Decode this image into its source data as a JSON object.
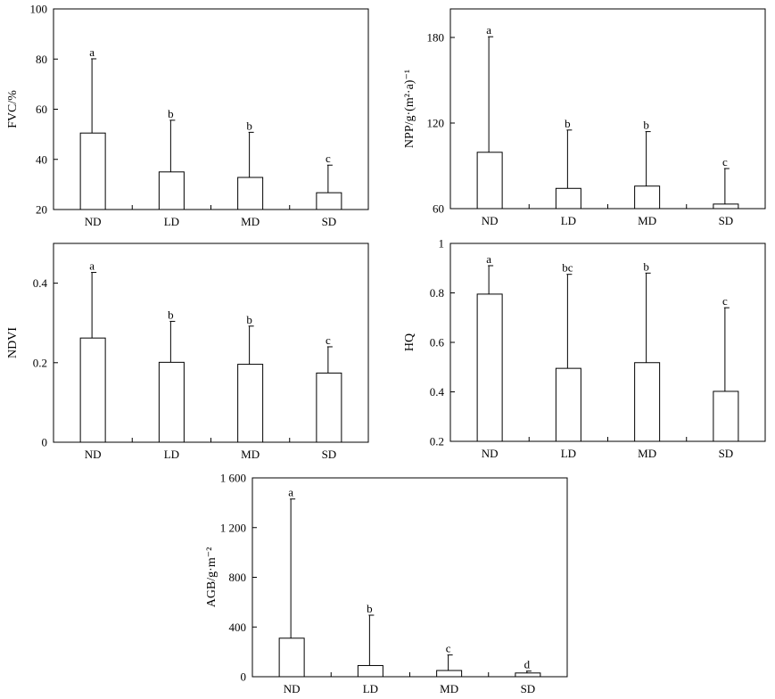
{
  "chart_data": [
    {
      "type": "bar",
      "ylabel": "FVC/%",
      "ylim": [
        20,
        100
      ],
      "yticks": [
        20,
        40,
        60,
        80,
        100
      ],
      "categories": [
        "ND",
        "LD",
        "MD",
        "SD"
      ],
      "values": [
        50.5,
        35,
        32.8,
        26.7
      ],
      "errors": [
        29.6,
        20.6,
        18.0,
        11.0
      ],
      "letters": [
        "a",
        "b",
        "b",
        "c"
      ]
    },
    {
      "type": "bar",
      "ylabel": "NPP/g·(m²·a)⁻¹",
      "ylim": [
        60,
        200
      ],
      "yticks": [
        60,
        120,
        180
      ],
      "categories": [
        "ND",
        "LD",
        "MD",
        "SD"
      ],
      "values": [
        99.5,
        74.2,
        75.8,
        63.2
      ],
      "errors": [
        81.0,
        40.9,
        38.2,
        24.9
      ],
      "letters": [
        "a",
        "b",
        "b",
        "c"
      ]
    },
    {
      "type": "bar",
      "ylabel": "NDVI",
      "ylim": [
        0,
        0.5
      ],
      "yticks": [
        0,
        0.2,
        0.4
      ],
      "categories": [
        "ND",
        "LD",
        "MD",
        "SD"
      ],
      "values": [
        0.262,
        0.201,
        0.196,
        0.174
      ],
      "errors": [
        0.165,
        0.103,
        0.096,
        0.066
      ],
      "letters": [
        "a",
        "b",
        "b",
        "c"
      ]
    },
    {
      "type": "bar",
      "ylabel": "HQ",
      "ylim": [
        0.2,
        1.0
      ],
      "yticks": [
        0.2,
        0.4,
        0.6,
        0.8,
        1.0
      ],
      "categories": [
        "ND",
        "LD",
        "MD",
        "SD"
      ],
      "values": [
        0.795,
        0.495,
        0.518,
        0.402
      ],
      "errors": [
        0.115,
        0.38,
        0.362,
        0.338
      ],
      "letters": [
        "a",
        "bc",
        "b",
        "c"
      ]
    },
    {
      "type": "bar",
      "ylabel": "AGB/g·m⁻²",
      "ylim": [
        0,
        1600
      ],
      "yticks": [
        0,
        400,
        800,
        1200,
        1600
      ],
      "ytick_labels": [
        "0",
        "400",
        "800",
        "1 200",
        "1 600"
      ],
      "categories": [
        "ND",
        "LD",
        "MD",
        "SD"
      ],
      "values": [
        310,
        90,
        50,
        30
      ],
      "errors": [
        1120,
        405,
        125,
        15
      ],
      "letters": [
        "a",
        "b",
        "c",
        "d"
      ]
    }
  ]
}
